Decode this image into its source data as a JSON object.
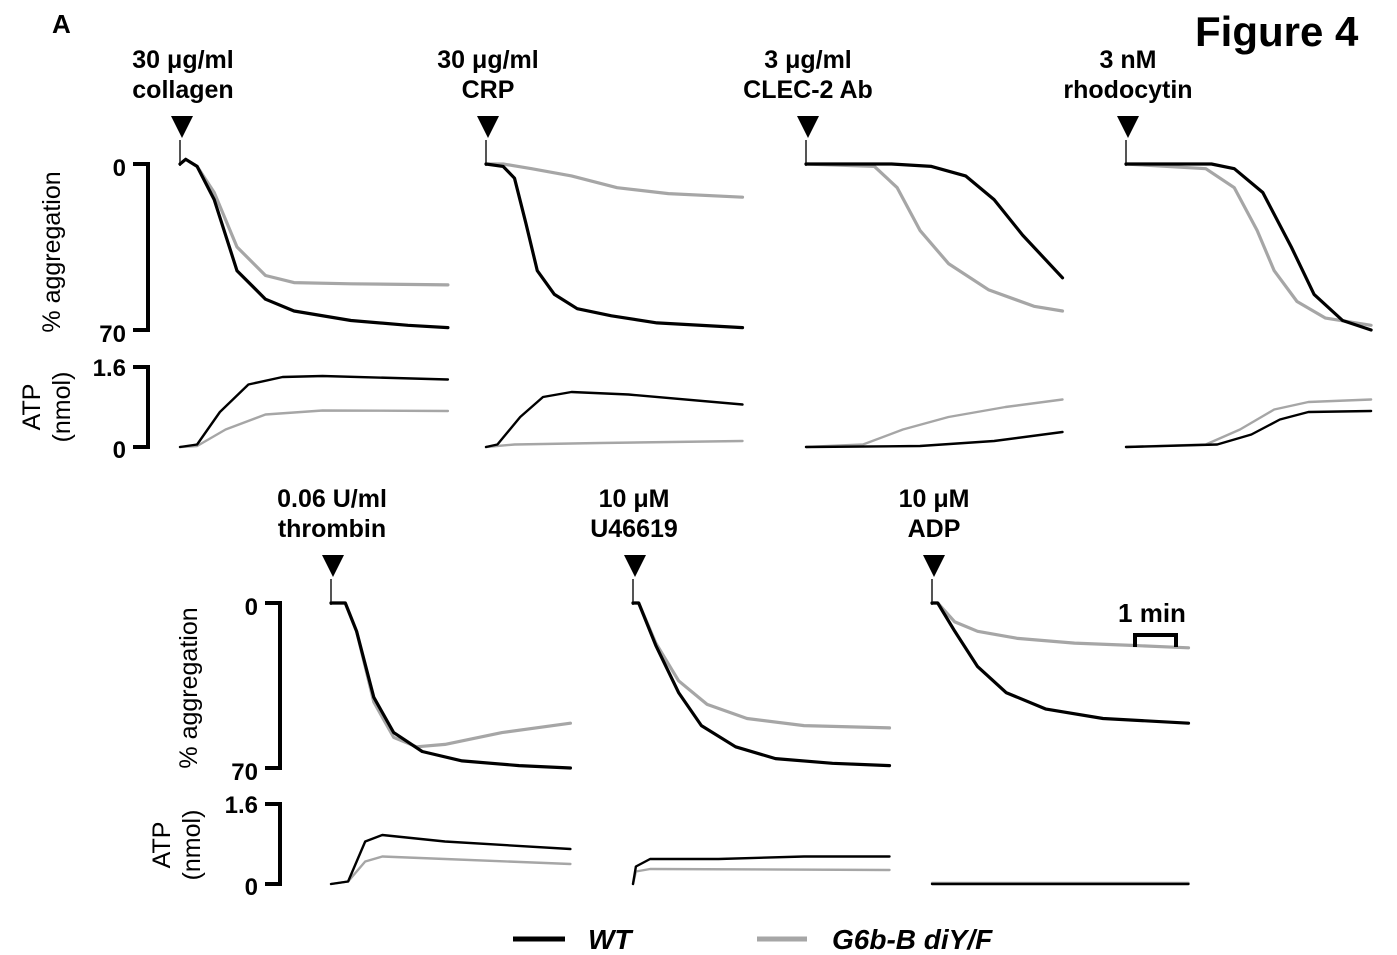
{
  "figure_title": "Figure 4",
  "panel_letter": "A",
  "y_labels": {
    "aggregation": "% aggregation",
    "atp_line1": "ATP",
    "atp_line2": "(nmol)"
  },
  "y_ticks": {
    "aggregation_top": "0",
    "aggregation_bottom": "70",
    "atp_top": "1.6",
    "atp_bottom": "0"
  },
  "scale_bar_label": "1 min",
  "legend": [
    {
      "name": "WT",
      "color": "#000000"
    },
    {
      "name": "G6b-B diY/F",
      "color": "#a6a6a6"
    }
  ],
  "colors": {
    "wt": "#000000",
    "mutant": "#a6a6a6"
  },
  "chart_data": {
    "type": "line",
    "x_unit": "min",
    "aggregation_range": [
      0,
      70
    ],
    "atp_range": [
      0,
      1.6
    ],
    "panels": [
      {
        "agonist_line1": "30 μg/ml",
        "agonist_line2": "collagen",
        "agg": {
          "wt": [
            [
              0,
              0
            ],
            [
              0.1,
              -2
            ],
            [
              0.3,
              1
            ],
            [
              0.6,
              15
            ],
            [
              1.0,
              45
            ],
            [
              1.5,
              57
            ],
            [
              2.0,
              62
            ],
            [
              3.0,
              66
            ],
            [
              4.0,
              68
            ],
            [
              4.7,
              69
            ]
          ],
          "mutant": [
            [
              0,
              0
            ],
            [
              0.1,
              -2
            ],
            [
              0.3,
              1
            ],
            [
              0.6,
              12
            ],
            [
              1.0,
              35
            ],
            [
              1.5,
              47
            ],
            [
              2.0,
              50
            ],
            [
              3.0,
              50.5
            ],
            [
              4.7,
              51
            ]
          ]
        },
        "atp": {
          "wt": [
            [
              0,
              0
            ],
            [
              0.3,
              0.05
            ],
            [
              0.7,
              0.7
            ],
            [
              1.2,
              1.25
            ],
            [
              1.8,
              1.4
            ],
            [
              2.5,
              1.42
            ],
            [
              4.7,
              1.35
            ]
          ],
          "mutant": [
            [
              0,
              0
            ],
            [
              0.3,
              0.02
            ],
            [
              0.8,
              0.35
            ],
            [
              1.5,
              0.65
            ],
            [
              2.5,
              0.73
            ],
            [
              4.7,
              0.72
            ]
          ]
        }
      },
      {
        "agonist_line1": "30 μg/ml",
        "agonist_line2": "CRP",
        "agg": {
          "wt": [
            [
              0,
              0
            ],
            [
              0.3,
              1
            ],
            [
              0.5,
              6
            ],
            [
              0.7,
              25
            ],
            [
              0.9,
              45
            ],
            [
              1.2,
              55
            ],
            [
              1.6,
              61
            ],
            [
              2.2,
              64
            ],
            [
              3.0,
              67
            ],
            [
              4.5,
              69
            ]
          ],
          "mutant": [
            [
              0,
              0
            ],
            [
              0.3,
              0
            ],
            [
              0.8,
              2
            ],
            [
              1.5,
              5
            ],
            [
              2.3,
              10
            ],
            [
              3.2,
              12.5
            ],
            [
              4.5,
              14
            ]
          ]
        },
        "atp": {
          "wt": [
            [
              0,
              0
            ],
            [
              0.2,
              0.05
            ],
            [
              0.6,
              0.6
            ],
            [
              1.0,
              1.0
            ],
            [
              1.5,
              1.1
            ],
            [
              2.5,
              1.05
            ],
            [
              4.5,
              0.85
            ]
          ],
          "mutant": [
            [
              0,
              0
            ],
            [
              0.5,
              0.05
            ],
            [
              2.0,
              0.08
            ],
            [
              4.5,
              0.12
            ]
          ]
        }
      },
      {
        "agonist_line1": "3 μg/ml",
        "agonist_line2": "CLEC-2 Ab",
        "agg": {
          "wt": [
            [
              0,
              0
            ],
            [
              1.5,
              0
            ],
            [
              2.2,
              1
            ],
            [
              2.8,
              5
            ],
            [
              3.3,
              15
            ],
            [
              3.8,
              30
            ],
            [
              4.5,
              48
            ]
          ],
          "mutant": [
            [
              0,
              0
            ],
            [
              1.2,
              1
            ],
            [
              1.6,
              10
            ],
            [
              2.0,
              28
            ],
            [
              2.5,
              42
            ],
            [
              3.2,
              53
            ],
            [
              4.0,
              60
            ],
            [
              4.5,
              62
            ]
          ]
        },
        "atp": {
          "wt": [
            [
              0,
              0
            ],
            [
              2.0,
              0.02
            ],
            [
              3.3,
              0.12
            ],
            [
              4.5,
              0.3
            ]
          ],
          "mutant": [
            [
              0,
              0
            ],
            [
              1.0,
              0.05
            ],
            [
              1.7,
              0.35
            ],
            [
              2.5,
              0.6
            ],
            [
              3.5,
              0.8
            ],
            [
              4.5,
              0.95
            ]
          ]
        }
      },
      {
        "agonist_line1": "3 nM",
        "agonist_line2": "rhodocytin",
        "agg": {
          "wt": [
            [
              0,
              0
            ],
            [
              1.5,
              0
            ],
            [
              1.9,
              2
            ],
            [
              2.4,
              12
            ],
            [
              2.9,
              35
            ],
            [
              3.3,
              55
            ],
            [
              3.8,
              66
            ],
            [
              4.3,
              70
            ]
          ],
          "mutant": [
            [
              0,
              0
            ],
            [
              1.4,
              2
            ],
            [
              1.9,
              10
            ],
            [
              2.3,
              28
            ],
            [
              2.6,
              45
            ],
            [
              3.0,
              58
            ],
            [
              3.5,
              65
            ],
            [
              4.3,
              68
            ]
          ]
        },
        "atp": {
          "wt": [
            [
              0,
              0
            ],
            [
              1.6,
              0.05
            ],
            [
              2.2,
              0.25
            ],
            [
              2.7,
              0.55
            ],
            [
              3.2,
              0.7
            ],
            [
              4.3,
              0.72
            ]
          ],
          "mutant": [
            [
              0,
              0
            ],
            [
              1.4,
              0.05
            ],
            [
              2.0,
              0.35
            ],
            [
              2.6,
              0.75
            ],
            [
              3.2,
              0.9
            ],
            [
              4.3,
              0.95
            ]
          ]
        }
      },
      {
        "agonist_line1": "0.06 U/ml",
        "agonist_line2": "thrombin",
        "agg": {
          "wt": [
            [
              0,
              0
            ],
            [
              0.25,
              0
            ],
            [
              0.45,
              12
            ],
            [
              0.75,
              40
            ],
            [
              1.1,
              55
            ],
            [
              1.6,
              63
            ],
            [
              2.3,
              67
            ],
            [
              3.3,
              69
            ],
            [
              4.2,
              70
            ]
          ],
          "mutant": [
            [
              0,
              0
            ],
            [
              0.25,
              0
            ],
            [
              0.45,
              12
            ],
            [
              0.75,
              42
            ],
            [
              1.1,
              57
            ],
            [
              1.5,
              61
            ],
            [
              2.0,
              60
            ],
            [
              3.0,
              55
            ],
            [
              4.2,
              51
            ]
          ]
        },
        "atp": {
          "wt": [
            [
              0,
              0
            ],
            [
              0.3,
              0.05
            ],
            [
              0.6,
              0.85
            ],
            [
              0.9,
              0.98
            ],
            [
              2.0,
              0.85
            ],
            [
              4.2,
              0.7
            ]
          ],
          "mutant": [
            [
              0,
              0
            ],
            [
              0.3,
              0.05
            ],
            [
              0.6,
              0.45
            ],
            [
              0.9,
              0.55
            ],
            [
              2.0,
              0.5
            ],
            [
              4.2,
              0.4
            ]
          ]
        }
      },
      {
        "agonist_line1": "10 μM",
        "agonist_line2": "U46619",
        "agg": {
          "wt": [
            [
              0,
              0
            ],
            [
              0.1,
              0
            ],
            [
              0.4,
              18
            ],
            [
              0.8,
              38
            ],
            [
              1.2,
              52
            ],
            [
              1.8,
              61
            ],
            [
              2.5,
              66
            ],
            [
              3.5,
              68
            ],
            [
              4.5,
              69
            ]
          ],
          "mutant": [
            [
              0,
              0
            ],
            [
              0.1,
              0
            ],
            [
              0.4,
              17
            ],
            [
              0.8,
              33
            ],
            [
              1.3,
              43
            ],
            [
              2.0,
              49
            ],
            [
              3.0,
              52
            ],
            [
              4.5,
              53
            ]
          ]
        },
        "atp": {
          "wt": [
            [
              0,
              0
            ],
            [
              0.05,
              0.35
            ],
            [
              0.3,
              0.5
            ],
            [
              1.5,
              0.5
            ],
            [
              3.0,
              0.55
            ],
            [
              4.5,
              0.55
            ]
          ],
          "mutant": [
            [
              0,
              0
            ],
            [
              0.05,
              0.25
            ],
            [
              0.3,
              0.3
            ],
            [
              4.5,
              0.28
            ]
          ]
        }
      },
      {
        "agonist_line1": "10 μM",
        "agonist_line2": "ADP",
        "agg": {
          "wt": [
            [
              0,
              0
            ],
            [
              0.1,
              0
            ],
            [
              0.4,
              12
            ],
            [
              0.8,
              27
            ],
            [
              1.3,
              38
            ],
            [
              2.0,
              45
            ],
            [
              3.0,
              49
            ],
            [
              4.5,
              51
            ]
          ],
          "mutant": [
            [
              0,
              0
            ],
            [
              0.1,
              0
            ],
            [
              0.4,
              8
            ],
            [
              0.8,
              12
            ],
            [
              1.5,
              15
            ],
            [
              2.5,
              17
            ],
            [
              3.5,
              18
            ],
            [
              4.5,
              19
            ]
          ]
        },
        "atp": {
          "wt": [
            [
              0,
              0
            ],
            [
              4.5,
              0
            ]
          ],
          "mutant": [
            [
              0,
              0.02
            ],
            [
              4.5,
              0.02
            ]
          ]
        }
      }
    ]
  }
}
